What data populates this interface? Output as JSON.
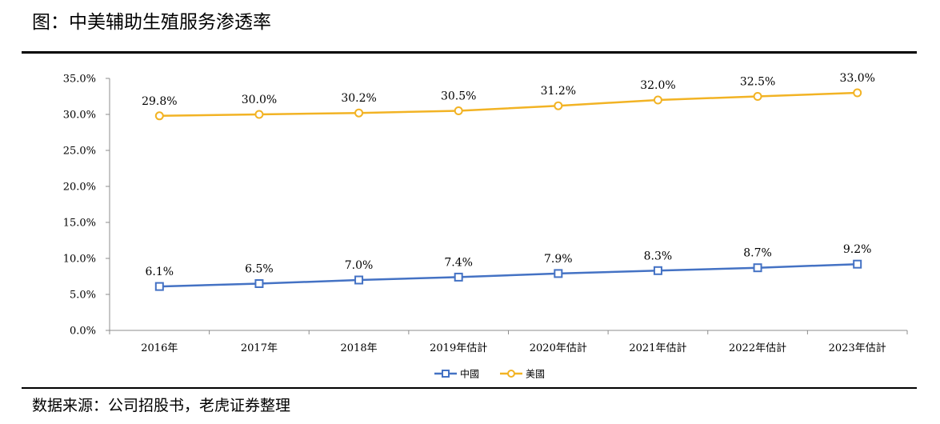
{
  "title": "图：中美辅助生殖服务渗透率",
  "source": "数据来源：公司招股书，老虎证券整理",
  "chart_data": {
    "type": "line",
    "categories": [
      "2016年",
      "2017年",
      "2018年",
      "2019年估計",
      "2020年估計",
      "2021年估計",
      "2022年估計",
      "2023年估計"
    ],
    "ylim": [
      0,
      35
    ],
    "yticks": [
      0,
      5,
      10,
      15,
      20,
      25,
      30,
      35
    ],
    "ytick_labels": [
      "0.0%",
      "5.0%",
      "10.0%",
      "15.0%",
      "20.0%",
      "25.0%",
      "30.0%",
      "35.0%"
    ],
    "grid": false,
    "legend_position": "bottom",
    "series": [
      {
        "name": "中國",
        "color": "#4472c4",
        "marker": "square",
        "values": [
          6.1,
          6.5,
          7.0,
          7.4,
          7.9,
          8.3,
          8.7,
          9.2
        ],
        "labels": [
          "6.1%",
          "6.5%",
          "7.0%",
          "7.4%",
          "7.9%",
          "8.3%",
          "8.7%",
          "9.2%"
        ]
      },
      {
        "name": "美國",
        "color": "#f2b324",
        "marker": "circle",
        "values": [
          29.8,
          30.0,
          30.2,
          30.5,
          31.2,
          32.0,
          32.5,
          33.0
        ],
        "labels": [
          "29.8%",
          "30.0%",
          "30.2%",
          "30.5%",
          "31.2%",
          "32.0%",
          "32.5%",
          "33.0%"
        ]
      }
    ]
  }
}
